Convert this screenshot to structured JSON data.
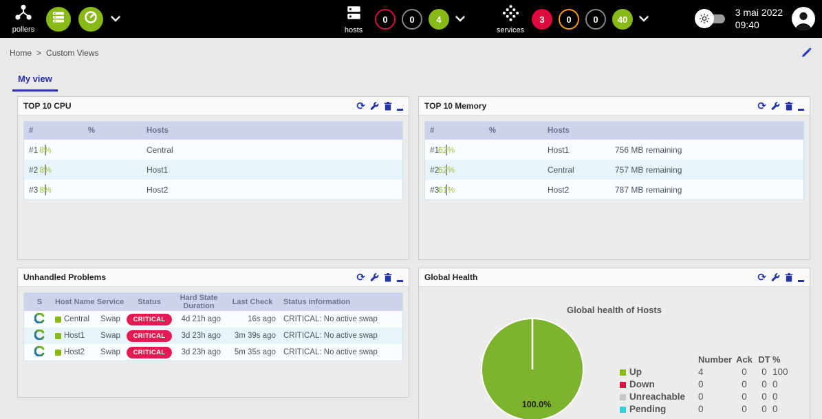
{
  "topbar": {
    "pollers_label": "pollers",
    "hosts_label": "hosts",
    "services_label": "services",
    "host_counters": [
      {
        "value": "0",
        "type": "outline",
        "color": "#e00b3d"
      },
      {
        "value": "0",
        "type": "outline",
        "color": "#87878b"
      },
      {
        "value": "4",
        "type": "filled",
        "color": "#88b917"
      }
    ],
    "service_counters": [
      {
        "value": "3",
        "type": "filled",
        "color": "#e00b3d"
      },
      {
        "value": "0",
        "type": "outline",
        "color": "#ff9913"
      },
      {
        "value": "0",
        "type": "outline",
        "color": "#87878b"
      },
      {
        "value": "40",
        "type": "filled",
        "color": "#88b917"
      }
    ],
    "date": "3 mai 2022",
    "time": "09:40"
  },
  "icons": {
    "refresh_glyph": "⟳"
  },
  "breadcrumb": {
    "items": [
      "Home",
      "Custom Views"
    ],
    "separator": ">"
  },
  "tabs": {
    "active": "My view"
  },
  "panels": {
    "cpu": {
      "title": "TOP 10 CPU",
      "columns": [
        "#",
        "%",
        "Hosts"
      ],
      "rows": [
        {
          "rank": "#1",
          "percent": "8%",
          "value": 8,
          "host": "Central"
        },
        {
          "rank": "#2",
          "percent": "8%",
          "value": 8,
          "host": "Host1"
        },
        {
          "rank": "#3",
          "percent": "8%",
          "value": 8,
          "host": "Host2"
        }
      ]
    },
    "memory": {
      "title": "TOP 10 Memory",
      "columns": [
        "#",
        "%",
        "Hosts"
      ],
      "rows": [
        {
          "rank": "#1",
          "percent": "62%",
          "value": 62,
          "host": "Host1",
          "remaining": "756 MB remaining"
        },
        {
          "rank": "#2",
          "percent": "62%",
          "value": 62,
          "host": "Central",
          "remaining": "757 MB remaining"
        },
        {
          "rank": "#3",
          "percent": "61%",
          "value": 61,
          "host": "Host2",
          "remaining": "787 MB remaining"
        }
      ]
    },
    "problems": {
      "title": "Unhandled Problems",
      "columns": [
        "S",
        "Host Name",
        "Service",
        "Status",
        "Hard State Duration",
        "Last Check",
        "Status information"
      ],
      "rows": [
        {
          "host": "Central",
          "service": "Swap",
          "status": "CRITICAL",
          "duration": "4d 21h ago",
          "last_check": "16s ago",
          "info": "CRITICAL: No active swap"
        },
        {
          "host": "Host1",
          "service": "Swap",
          "status": "CRITICAL",
          "duration": "3d 23h ago",
          "last_check": "3m 39s ago",
          "info": "CRITICAL: No active swap"
        },
        {
          "host": "Host2",
          "service": "Swap",
          "status": "CRITICAL",
          "duration": "3d 23h ago",
          "last_check": "5m 35s ago",
          "info": "CRITICAL: No active swap"
        }
      ]
    },
    "health": {
      "title": "Global Health",
      "chart_title": "Global health of Hosts",
      "pie_label": "100.0%",
      "legend_columns": [
        "Number",
        "Ack",
        "DT",
        "%"
      ],
      "legend": [
        {
          "label": "Up",
          "color": "#88b917",
          "number": "4",
          "ack": "0",
          "dt": "0",
          "pct": "100"
        },
        {
          "label": "Down",
          "color": "#e00b3d",
          "number": "0",
          "ack": "0",
          "dt": "0",
          "pct": "0"
        },
        {
          "label": "Unreachable",
          "color": "#c7c7c7",
          "number": "0",
          "ack": "0",
          "dt": "0",
          "pct": "0"
        },
        {
          "label": "Pending",
          "color": "#30d1d8",
          "number": "0",
          "ack": "0",
          "dt": "0",
          "pct": "0"
        }
      ]
    }
  },
  "chart_data": {
    "type": "pie",
    "title": "Global health of Hosts",
    "labels": [
      "Up",
      "Down",
      "Unreachable",
      "Pending"
    ],
    "values": [
      100,
      0,
      0,
      0
    ],
    "counts": [
      4,
      0,
      0,
      0
    ],
    "colors": [
      "#7db32f",
      "#e00b3d",
      "#c7c7c7",
      "#30d1d8"
    ],
    "annotations": [
      "100.0%"
    ],
    "legend_position": "right"
  }
}
